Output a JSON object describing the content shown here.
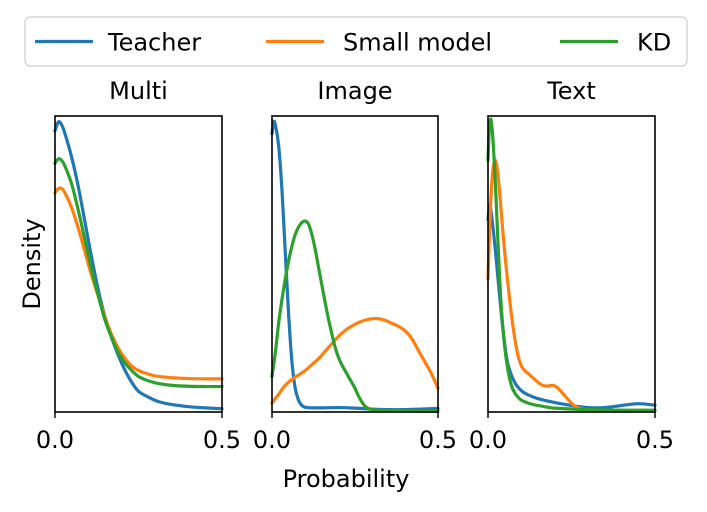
{
  "chart_data": {
    "type": "line",
    "xlabel": "Probability",
    "ylabel": "Density",
    "legend": {
      "placement": "top",
      "entries": [
        {
          "name": "Teacher",
          "color": "#1f77b4"
        },
        {
          "name": "Small model",
          "color": "#ff7f0e"
        },
        {
          "name": "KD",
          "color": "#2ca02c"
        }
      ]
    },
    "grid": false,
    "y_tick_labels": false,
    "panels": [
      {
        "title": "Multi",
        "xlim": [
          0,
          0.5
        ],
        "ylim": [
          0,
          1
        ],
        "x_ticks": [
          0.0,
          0.5
        ],
        "x_tick_labels": [
          "0.0",
          "0.5"
        ],
        "series": [
          {
            "name": "Teacher",
            "x": [
              0,
              0.01,
              0.02,
              0.03,
              0.05,
              0.07,
              0.09,
              0.11,
              0.13,
              0.15,
              0.17,
              0.19,
              0.21,
              0.23,
              0.25,
              0.28,
              0.31,
              0.35,
              0.4,
              0.45,
              0.5
            ],
            "y": [
              0.95,
              0.98,
              0.97,
              0.94,
              0.86,
              0.76,
              0.64,
              0.52,
              0.41,
              0.32,
              0.25,
              0.19,
              0.14,
              0.1,
              0.07,
              0.05,
              0.035,
              0.025,
              0.018,
              0.014,
              0.011
            ]
          },
          {
            "name": "Small model",
            "x": [
              0,
              0.01,
              0.02,
              0.03,
              0.05,
              0.07,
              0.09,
              0.11,
              0.13,
              0.15,
              0.17,
              0.19,
              0.21,
              0.23,
              0.25,
              0.28,
              0.31,
              0.35,
              0.4,
              0.45,
              0.5
            ],
            "y": [
              0.74,
              0.755,
              0.755,
              0.74,
              0.69,
              0.62,
              0.54,
              0.46,
              0.39,
              0.32,
              0.26,
              0.215,
              0.18,
              0.155,
              0.14,
              0.128,
              0.12,
              0.116,
              0.113,
              0.112,
              0.112
            ]
          },
          {
            "name": "KD",
            "x": [
              0,
              0.01,
              0.02,
              0.03,
              0.05,
              0.07,
              0.09,
              0.11,
              0.13,
              0.15,
              0.17,
              0.19,
              0.21,
              0.23,
              0.25,
              0.28,
              0.31,
              0.35,
              0.4,
              0.45,
              0.5
            ],
            "y": [
              0.84,
              0.855,
              0.85,
              0.83,
              0.77,
              0.68,
              0.58,
              0.48,
              0.39,
              0.31,
              0.25,
              0.2,
              0.165,
              0.14,
              0.12,
              0.105,
              0.096,
              0.09,
              0.087,
              0.086,
              0.086
            ]
          }
        ]
      },
      {
        "title": "Image",
        "xlim": [
          0,
          0.5
        ],
        "ylim": [
          0,
          1
        ],
        "x_ticks": [
          0.0,
          0.5
        ],
        "x_tick_labels": [
          "0.0",
          "0.5"
        ],
        "series": [
          {
            "name": "Teacher",
            "x": [
              0,
              0.005,
              0.01,
              0.02,
              0.03,
              0.04,
              0.05,
              0.06,
              0.07,
              0.08,
              0.09,
              0.1,
              0.12,
              0.15,
              0.2,
              0.25,
              0.3,
              0.35,
              0.4,
              0.45,
              0.5
            ],
            "y": [
              0.94,
              0.98,
              0.97,
              0.9,
              0.75,
              0.54,
              0.33,
              0.17,
              0.08,
              0.04,
              0.022,
              0.016,
              0.014,
              0.014,
              0.015,
              0.013,
              0.01,
              0.008,
              0.008,
              0.01,
              0.012
            ]
          },
          {
            "name": "Small model",
            "x": [
              0,
              0.02,
              0.04,
              0.06,
              0.08,
              0.1,
              0.12,
              0.14,
              0.16,
              0.18,
              0.2,
              0.22,
              0.24,
              0.26,
              0.28,
              0.3,
              0.32,
              0.34,
              0.36,
              0.38,
              0.4,
              0.42,
              0.44,
              0.46,
              0.48,
              0.5
            ],
            "y": [
              0.03,
              0.06,
              0.09,
              0.11,
              0.125,
              0.14,
              0.16,
              0.18,
              0.205,
              0.23,
              0.255,
              0.275,
              0.29,
              0.302,
              0.31,
              0.315,
              0.315,
              0.31,
              0.3,
              0.29,
              0.275,
              0.25,
              0.21,
              0.17,
              0.13,
              0.08
            ]
          },
          {
            "name": "KD",
            "x": [
              0,
              0.01,
              0.02,
              0.03,
              0.04,
              0.05,
              0.06,
              0.07,
              0.08,
              0.09,
              0.1,
              0.11,
              0.12,
              0.13,
              0.14,
              0.15,
              0.16,
              0.17,
              0.18,
              0.19,
              0.2,
              0.21,
              0.22,
              0.23,
              0.24,
              0.25,
              0.26,
              0.27,
              0.28,
              0.29,
              0.3,
              0.32,
              0.35,
              0.4,
              0.45,
              0.5
            ],
            "y": [
              0.12,
              0.2,
              0.3,
              0.38,
              0.45,
              0.51,
              0.56,
              0.6,
              0.625,
              0.64,
              0.645,
              0.635,
              0.6,
              0.55,
              0.49,
              0.43,
              0.37,
              0.315,
              0.265,
              0.22,
              0.185,
              0.16,
              0.14,
              0.12,
              0.1,
              0.08,
              0.055,
              0.035,
              0.02,
              0.012,
              0.008,
              0.006,
              0.005,
              0.004,
              0.003,
              0.003
            ]
          }
        ]
      },
      {
        "title": "Text",
        "xlim": [
          0,
          0.5
        ],
        "ylim": [
          0,
          1
        ],
        "x_ticks": [
          0.0,
          0.5
        ],
        "x_tick_labels": [
          "0.0",
          "0.5"
        ],
        "series": [
          {
            "name": "Teacher",
            "x": [
              0,
              0.005,
              0.01,
              0.02,
              0.03,
              0.04,
              0.05,
              0.06,
              0.08,
              0.1,
              0.12,
              0.15,
              0.2,
              0.25,
              0.3,
              0.35,
              0.4,
              0.45,
              0.5
            ],
            "y": [
              0.65,
              0.7,
              0.67,
              0.57,
              0.45,
              0.33,
              0.23,
              0.16,
              0.1,
              0.072,
              0.058,
              0.045,
              0.032,
              0.022,
              0.015,
              0.015,
              0.022,
              0.028,
              0.023
            ]
          },
          {
            "name": "Small model",
            "x": [
              0,
              0.005,
              0.01,
              0.015,
              0.02,
              0.025,
              0.03,
              0.035,
              0.04,
              0.05,
              0.06,
              0.07,
              0.08,
              0.09,
              0.1,
              0.11,
              0.12,
              0.13,
              0.14,
              0.15,
              0.16,
              0.17,
              0.18,
              0.19,
              0.2,
              0.21,
              0.22,
              0.23,
              0.24,
              0.25,
              0.26,
              0.27,
              0.28,
              0.29,
              0.3,
              0.32,
              0.35,
              0.4,
              0.45,
              0.5
            ],
            "y": [
              0.45,
              0.62,
              0.75,
              0.82,
              0.85,
              0.84,
              0.8,
              0.74,
              0.67,
              0.54,
              0.43,
              0.33,
              0.25,
              0.19,
              0.155,
              0.14,
              0.13,
              0.12,
              0.11,
              0.1,
              0.092,
              0.088,
              0.088,
              0.09,
              0.088,
              0.08,
              0.068,
              0.055,
              0.042,
              0.03,
              0.02,
              0.014,
              0.01,
              0.008,
              0.007,
              0.007,
              0.006,
              0.005,
              0.004,
              0.004
            ]
          },
          {
            "name": "KD",
            "x": [
              0,
              0.004,
              0.008,
              0.012,
              0.016,
              0.02,
              0.025,
              0.03,
              0.035,
              0.04,
              0.05,
              0.06,
              0.07,
              0.08,
              0.09,
              0.1,
              0.12,
              0.14,
              0.16,
              0.18,
              0.2,
              0.25,
              0.3,
              0.35,
              0.4,
              0.45,
              0.5
            ],
            "y": [
              0.85,
              0.96,
              0.99,
              0.96,
              0.9,
              0.82,
              0.7,
              0.57,
              0.45,
              0.35,
              0.22,
              0.14,
              0.09,
              0.065,
              0.05,
              0.04,
              0.03,
              0.024,
              0.02,
              0.016,
              0.013,
              0.01,
              0.008,
              0.007,
              0.006,
              0.006,
              0.006
            ]
          }
        ]
      }
    ]
  }
}
